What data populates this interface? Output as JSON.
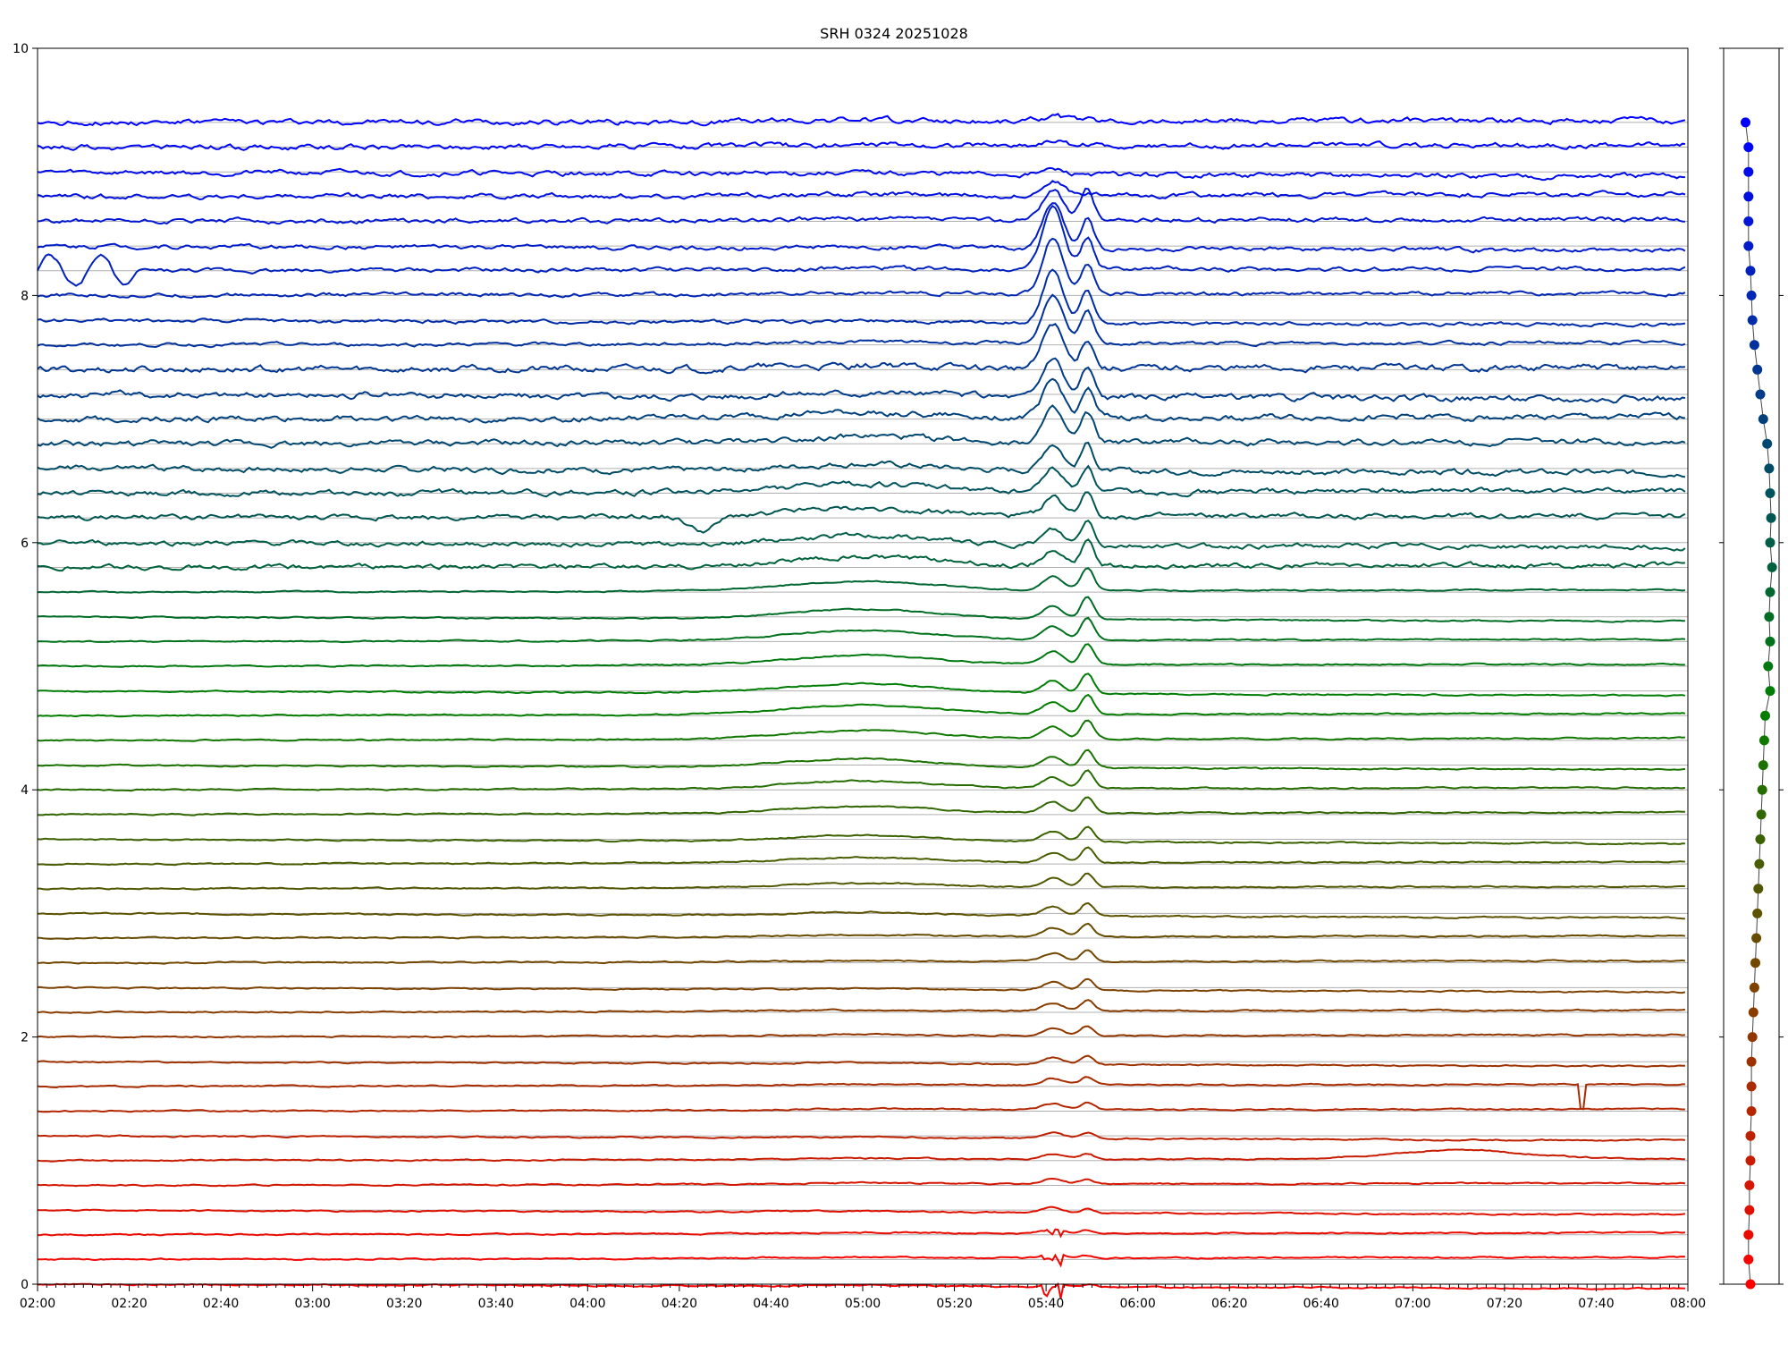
{
  "chart_data": {
    "type": "line",
    "title": "SRH 0324 20251028",
    "xlabel": "",
    "ylabel": "",
    "x_ticks": [
      "02:00",
      "02:20",
      "02:40",
      "03:00",
      "03:20",
      "03:40",
      "04:00",
      "04:20",
      "04:40",
      "05:00",
      "05:20",
      "05:40",
      "06:00",
      "06:20",
      "06:40",
      "07:00",
      "07:20",
      "07:40",
      "08:00"
    ],
    "x_range_minutes": [
      120,
      480
    ],
    "y_ticks": [
      "0",
      "2",
      "4",
      "6",
      "8",
      "10"
    ],
    "ylim": [
      0,
      10
    ],
    "grid": "horizontal reference lines at each channel baseline",
    "legend": "none",
    "series_count": 48,
    "colors": {
      "start": "#ff0000",
      "mid": "#008000",
      "end": "#0000ff",
      "axis": "#000000",
      "grid": "#b0b0b0",
      "connector": "#444444"
    },
    "channel_levels": [
      0.0,
      0.2,
      0.4,
      0.6,
      0.8,
      1.0,
      1.2,
      1.4,
      1.6,
      1.8,
      2.0,
      2.2,
      2.4,
      2.6,
      2.8,
      3.0,
      3.2,
      3.4,
      3.6,
      3.8,
      4.0,
      4.2,
      4.4,
      4.6,
      4.8,
      5.0,
      5.2,
      5.4,
      5.6,
      5.8,
      6.0,
      6.2,
      6.4,
      6.6,
      6.8,
      7.0,
      7.2,
      7.4,
      7.6,
      7.8,
      8.0,
      8.2,
      8.4,
      8.6,
      8.8,
      9.0,
      9.2,
      9.4
    ],
    "side_panel_marker_offsets": [
      0.0,
      0.02,
      0.02,
      0.01,
      0.01,
      0.0,
      0.0,
      -0.01,
      -0.01,
      -0.01,
      -0.02,
      -0.03,
      -0.04,
      -0.05,
      -0.06,
      -0.07,
      -0.08,
      -0.09,
      -0.1,
      -0.11,
      -0.12,
      -0.13,
      -0.14,
      -0.15,
      -0.2,
      -0.18,
      -0.2,
      -0.19,
      -0.2,
      -0.22,
      -0.2,
      -0.21,
      -0.2,
      -0.19,
      -0.17,
      -0.13,
      -0.1,
      -0.07,
      -0.04,
      -0.02,
      -0.01,
      0.0,
      0.02,
      0.02,
      0.02,
      0.02,
      0.02,
      0.05
    ],
    "events": [
      {
        "type": "main_burst",
        "time": 341.5,
        "width": 2.2,
        "amplitude_low": 0.03,
        "amplitude_mid": 0.5,
        "amplitude_peak_channel": 41
      },
      {
        "type": "secondary_burst",
        "time": 349,
        "width": 1.4,
        "amplitude_low": 0.015,
        "amplitude_mid": 0.25
      },
      {
        "type": "broad_hump",
        "time": 300,
        "width": 16,
        "amplitude": 0.08
      },
      {
        "type": "dip",
        "channel": 31,
        "time": 265,
        "width": 3,
        "amplitude": -0.12
      },
      {
        "type": "hump",
        "channel": 5,
        "time": 430,
        "width": 14,
        "amplitude": 0.07
      },
      {
        "type": "spike_down",
        "channel": 8,
        "time": 457,
        "amplitude": -0.2
      },
      {
        "type": "oscillation",
        "channel": 41,
        "time_start": 120,
        "time_end": 142,
        "amplitude": 0.2
      }
    ]
  }
}
